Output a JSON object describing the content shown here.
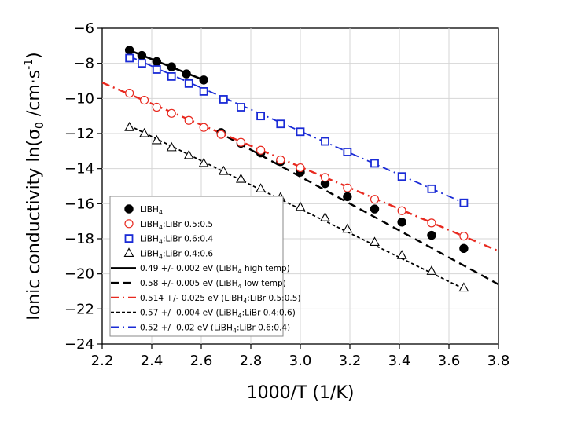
{
  "chart_data": {
    "type": "scatter",
    "xlabel": "1000/T (1/K)",
    "ylabel_parts": [
      "Ionic conductivity ln(σ",
      "0",
      " /cm·s",
      "-1",
      ")"
    ],
    "xlim": [
      2.2,
      3.8
    ],
    "ylim": [
      -24,
      -6
    ],
    "x_ticks": [
      "2.2",
      "2.4",
      "2.6",
      "2.8",
      "3.0",
      "3.2",
      "3.4",
      "3.6",
      "3.8"
    ],
    "x_tick_values": [
      2.2,
      2.4,
      2.6,
      2.8,
      3.0,
      3.2,
      3.4,
      3.6,
      3.8
    ],
    "y_ticks": [
      "−24",
      "−22",
      "−20",
      "−18",
      "−16",
      "−14",
      "−12",
      "−10",
      "−8",
      "−6"
    ],
    "y_tick_values": [
      -24,
      -22,
      -20,
      -18,
      -16,
      -14,
      -12,
      -10,
      -8,
      -6
    ],
    "grid": true,
    "legend_position": "lower-left",
    "series": [
      {
        "name_parts": [
          "LiBH",
          "4",
          ""
        ],
        "marker": "filled-circle",
        "color": "#000000",
        "points": [
          [
            2.31,
            -7.25
          ],
          [
            2.36,
            -7.55
          ],
          [
            2.42,
            -7.9
          ],
          [
            2.48,
            -8.2
          ],
          [
            2.54,
            -8.6
          ],
          [
            2.61,
            -8.95
          ],
          [
            2.68,
            -11.95
          ],
          [
            2.76,
            -12.55
          ],
          [
            2.84,
            -13.1
          ],
          [
            2.92,
            -13.6
          ],
          [
            3.0,
            -14.2
          ],
          [
            3.1,
            -14.85
          ],
          [
            3.19,
            -15.6
          ],
          [
            3.3,
            -16.3
          ],
          [
            3.41,
            -17.05
          ],
          [
            3.53,
            -17.8
          ],
          [
            3.66,
            -18.55
          ]
        ]
      },
      {
        "name_parts": [
          "LiBH",
          "4",
          ":LiBr 0.5:0.5"
        ],
        "marker": "open-circle",
        "color": "#e8291f",
        "points": [
          [
            2.31,
            -9.7
          ],
          [
            2.37,
            -10.1
          ],
          [
            2.42,
            -10.5
          ],
          [
            2.48,
            -10.85
          ],
          [
            2.55,
            -11.25
          ],
          [
            2.61,
            -11.65
          ],
          [
            2.68,
            -12.05
          ],
          [
            2.76,
            -12.5
          ],
          [
            2.84,
            -12.95
          ],
          [
            2.92,
            -13.5
          ],
          [
            3.0,
            -13.95
          ],
          [
            3.1,
            -14.5
          ],
          [
            3.19,
            -15.1
          ],
          [
            3.3,
            -15.75
          ],
          [
            3.41,
            -16.4
          ],
          [
            3.53,
            -17.1
          ],
          [
            3.66,
            -17.85
          ]
        ]
      },
      {
        "name_parts": [
          "LiBH",
          "4",
          ":LiBr 0.6:0.4"
        ],
        "marker": "open-square",
        "color": "#1a2bd6",
        "points": [
          [
            2.31,
            -7.7
          ],
          [
            2.36,
            -8.0
          ],
          [
            2.42,
            -8.35
          ],
          [
            2.48,
            -8.75
          ],
          [
            2.55,
            -9.15
          ],
          [
            2.61,
            -9.6
          ],
          [
            2.69,
            -10.05
          ],
          [
            2.76,
            -10.5
          ],
          [
            2.84,
            -11.0
          ],
          [
            2.92,
            -11.45
          ],
          [
            3.0,
            -11.9
          ],
          [
            3.1,
            -12.45
          ],
          [
            3.19,
            -13.05
          ],
          [
            3.3,
            -13.7
          ],
          [
            3.41,
            -14.45
          ],
          [
            3.53,
            -15.15
          ],
          [
            3.66,
            -15.95
          ]
        ]
      },
      {
        "name_parts": [
          "LiBH",
          "4",
          ":LiBr 0.4:0.6"
        ],
        "marker": "open-triangle",
        "color": "#000000",
        "points": [
          [
            2.31,
            -11.65
          ],
          [
            2.37,
            -12.0
          ],
          [
            2.42,
            -12.4
          ],
          [
            2.48,
            -12.8
          ],
          [
            2.55,
            -13.25
          ],
          [
            2.61,
            -13.7
          ],
          [
            2.69,
            -14.15
          ],
          [
            2.76,
            -14.6
          ],
          [
            2.84,
            -15.15
          ],
          [
            2.92,
            -15.65
          ],
          [
            3.0,
            -16.2
          ],
          [
            3.1,
            -16.8
          ],
          [
            3.19,
            -17.45
          ],
          [
            3.3,
            -18.2
          ],
          [
            3.41,
            -18.95
          ],
          [
            3.53,
            -19.85
          ],
          [
            3.66,
            -20.8
          ]
        ]
      }
    ],
    "fits": [
      {
        "name_parts": [
          "0.49 +/- 0.002 eV (LiBH",
          "4",
          " high temp)"
        ],
        "style": "solid",
        "color": "#000000",
        "width": 2.6,
        "from": [
          2.31,
          -7.25
        ],
        "to": [
          2.61,
          -8.95
        ]
      },
      {
        "name_parts": [
          "0.58 +/- 0.005 eV (LiBH",
          "4",
          " low temp)"
        ],
        "style": "dash",
        "color": "#000000",
        "width": 2.4,
        "from": [
          2.66,
          -11.85
        ],
        "to": [
          3.8,
          -20.6
        ]
      },
      {
        "name_parts": [
          "0.514 +/- 0.025 eV (LiBH",
          "4",
          ":LiBr 0.5:0.5)"
        ],
        "style": "dashdot",
        "color": "#e8291f",
        "width": 2.4,
        "from": [
          2.2,
          -9.1
        ],
        "to": [
          3.8,
          -18.7
        ]
      },
      {
        "name_parts": [
          "0.57 +/- 0.004 eV (LiBH",
          "4",
          ":LiBr 0.4:0.6)"
        ],
        "style": "shortdash",
        "color": "#000000",
        "width": 1.8,
        "from": [
          2.31,
          -11.55
        ],
        "to": [
          3.66,
          -20.85
        ]
      },
      {
        "name_parts": [
          "0.52 +/- 0.02 eV (LiBH",
          "4",
          ":LiBr 0.6:0.4)"
        ],
        "style": "dashdot",
        "color": "#1a2bd6",
        "width": 1.8,
        "from": [
          2.31,
          -7.6
        ],
        "to": [
          3.66,
          -15.95
        ]
      }
    ]
  }
}
